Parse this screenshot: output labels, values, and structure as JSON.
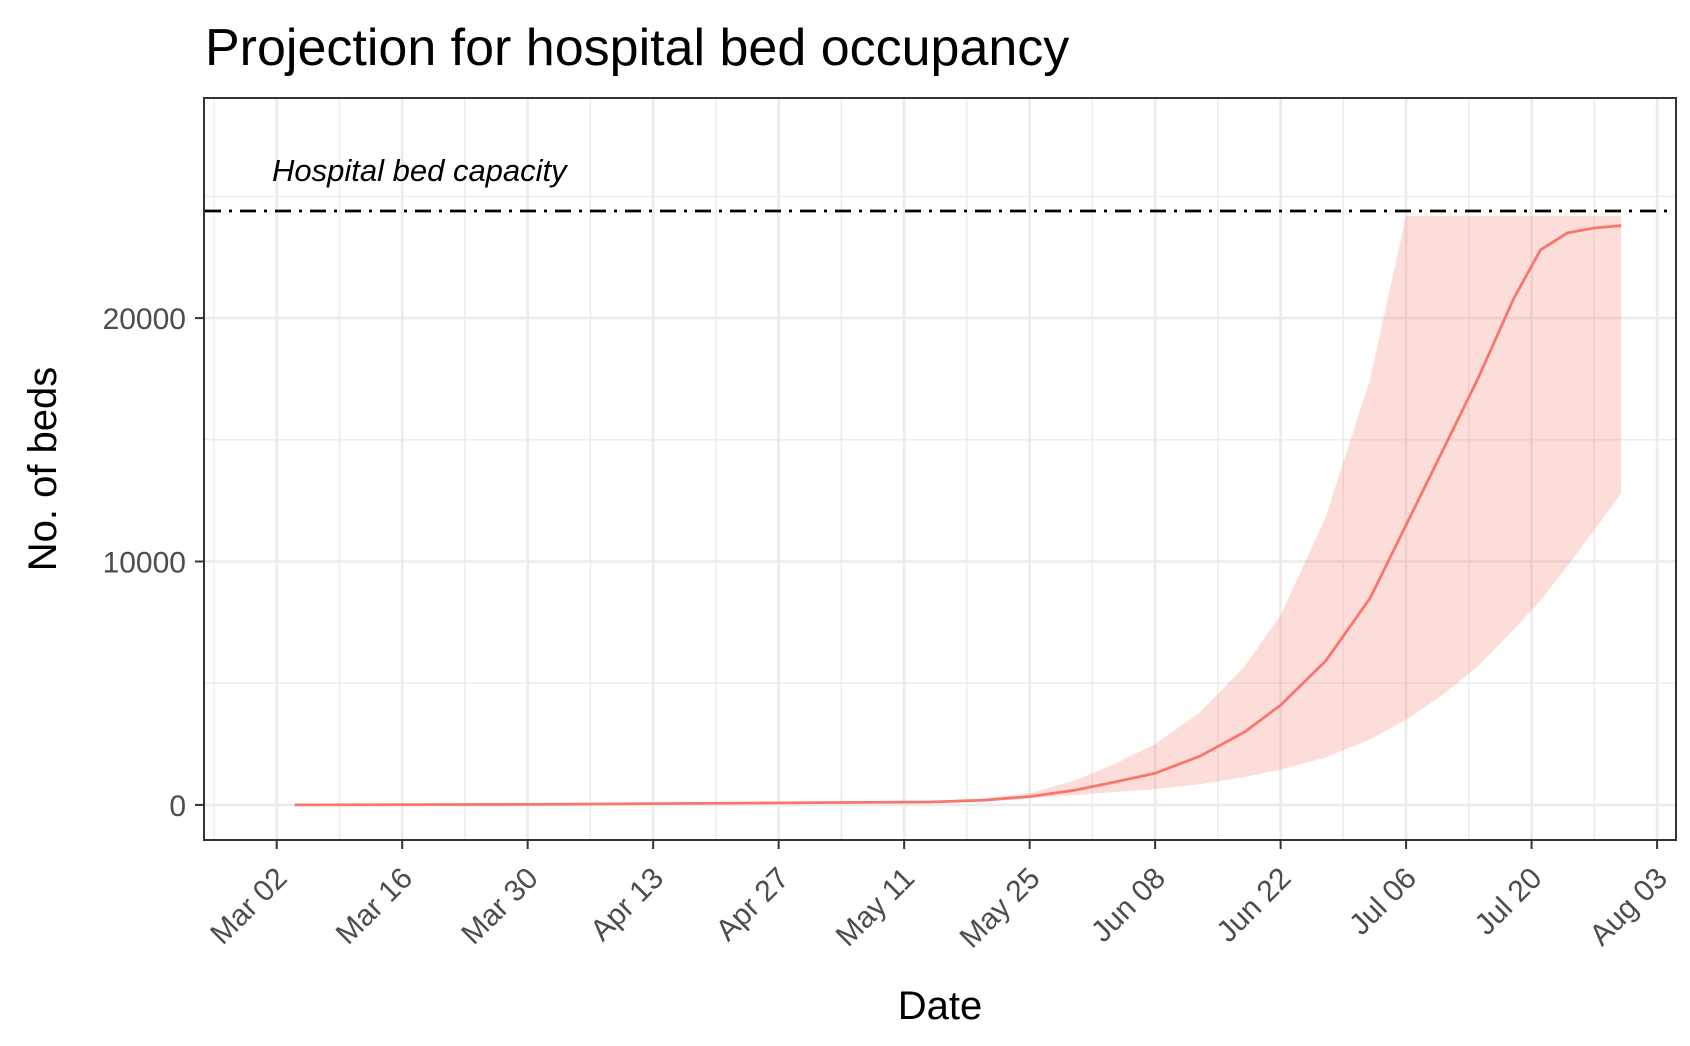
{
  "chart_data": {
    "type": "area",
    "title": "Projection for hospital bed occupancy",
    "xlabel": "Date",
    "ylabel": "No. of beds",
    "x_ticks": [
      "Mar 02",
      "Mar 16",
      "Mar 30",
      "Apr 13",
      "Apr 27",
      "May 11",
      "May 25",
      "Jun 08",
      "Jun 22",
      "Jul 06",
      "Jul 20",
      "Aug 03"
    ],
    "y_ticks": [
      0,
      10000,
      20000
    ],
    "xlim": [
      "2020-02-23",
      "2020-08-05"
    ],
    "ylim": [
      -1400,
      29000
    ],
    "grid": true,
    "annotations": [
      {
        "text": "Hospital bed capacity",
        "y": 24400,
        "linestyle": "dashdot"
      }
    ],
    "series": [
      {
        "line_color": "#f8766d",
        "band_color": "#f8766d",
        "band_opacity": 0.25,
        "points": [
          {
            "x": "2020-03-04",
            "y": 0,
            "lower": 0,
            "upper": 0
          },
          {
            "x": "2020-03-31",
            "y": 20,
            "lower": 10,
            "upper": 30
          },
          {
            "x": "2020-04-16",
            "y": 60,
            "lower": 40,
            "upper": 80
          },
          {
            "x": "2020-05-04",
            "y": 100,
            "lower": 80,
            "upper": 130
          },
          {
            "x": "2020-05-14",
            "y": 120,
            "lower": 100,
            "upper": 160
          },
          {
            "x": "2020-05-20",
            "y": 200,
            "lower": 170,
            "upper": 280
          },
          {
            "x": "2020-05-25",
            "y": 340,
            "lower": 280,
            "upper": 480
          },
          {
            "x": "2020-05-30",
            "y": 600,
            "lower": 400,
            "upper": 1000
          },
          {
            "x": "2020-06-03",
            "y": 900,
            "lower": 520,
            "upper": 1600
          },
          {
            "x": "2020-06-08",
            "y": 1300,
            "lower": 650,
            "upper": 2500
          },
          {
            "x": "2020-06-13",
            "y": 2000,
            "lower": 850,
            "upper": 3800
          },
          {
            "x": "2020-06-18",
            "y": 3000,
            "lower": 1150,
            "upper": 5700
          },
          {
            "x": "2020-06-22",
            "y": 4100,
            "lower": 1450,
            "upper": 7800
          },
          {
            "x": "2020-06-27",
            "y": 5900,
            "lower": 1950,
            "upper": 11800
          },
          {
            "x": "2020-07-02",
            "y": 8500,
            "lower": 2700,
            "upper": 17500
          },
          {
            "x": "2020-07-06",
            "y": 11500,
            "lower": 3500,
            "upper": 24200
          },
          {
            "x": "2020-07-10",
            "y": 14500,
            "lower": 4500,
            "upper": 24200
          },
          {
            "x": "2020-07-14",
            "y": 17500,
            "lower": 5700,
            "upper": 24200
          },
          {
            "x": "2020-07-18",
            "y": 20800,
            "lower": 7200,
            "upper": 24200
          },
          {
            "x": "2020-07-21",
            "y": 22800,
            "lower": 8400,
            "upper": 24200
          },
          {
            "x": "2020-07-24",
            "y": 23500,
            "lower": 9800,
            "upper": 24200
          },
          {
            "x": "2020-07-27",
            "y": 23700,
            "lower": 11300,
            "upper": 24200
          },
          {
            "x": "2020-07-30",
            "y": 23800,
            "lower": 12800,
            "upper": 24200
          }
        ]
      }
    ]
  }
}
